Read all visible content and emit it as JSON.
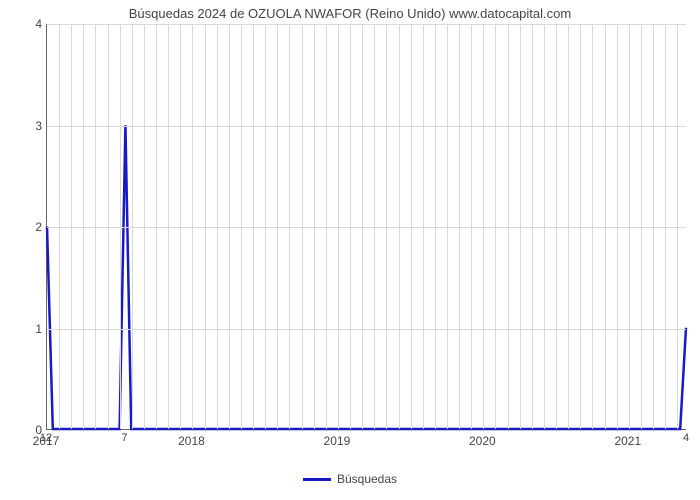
{
  "chart": {
    "type": "line",
    "title": "Búsquedas 2024 de OZUOLA NWAFOR (Reino Unido) www.datocapital.com",
    "title_fontsize": 13,
    "title_color": "#444444",
    "background_color": "#ffffff",
    "grid_color": "#d9d9d9",
    "axis_color": "#666666",
    "tick_font_color": "#444444",
    "tick_fontsize": 12,
    "line_color": "#1919c5",
    "line_width": 2.5,
    "x_range": [
      2017,
      2021.4
    ],
    "y_range": [
      0,
      4
    ],
    "y_ticks": [
      0,
      1,
      2,
      3,
      4
    ],
    "x_ticks": [
      2017,
      2018,
      2019,
      2020,
      2021
    ],
    "x_minor_count": 12,
    "series": {
      "label": "Búsquedas",
      "x": [
        2017.0,
        2017.04,
        2017.08,
        2017.5,
        2017.54,
        2017.58,
        2021.32,
        2021.36,
        2021.4
      ],
      "y": [
        2.0,
        0.0,
        0.0,
        0.0,
        3.0,
        0.0,
        0.0,
        0.0,
        1.0
      ]
    },
    "data_labels": [
      {
        "x": 2017.0,
        "y": 0,
        "text": "12"
      },
      {
        "x": 2017.54,
        "y": 0,
        "text": "7"
      },
      {
        "x": 2021.4,
        "y": 0,
        "text": "4"
      }
    ],
    "legend": {
      "label": "Búsquedas"
    }
  }
}
